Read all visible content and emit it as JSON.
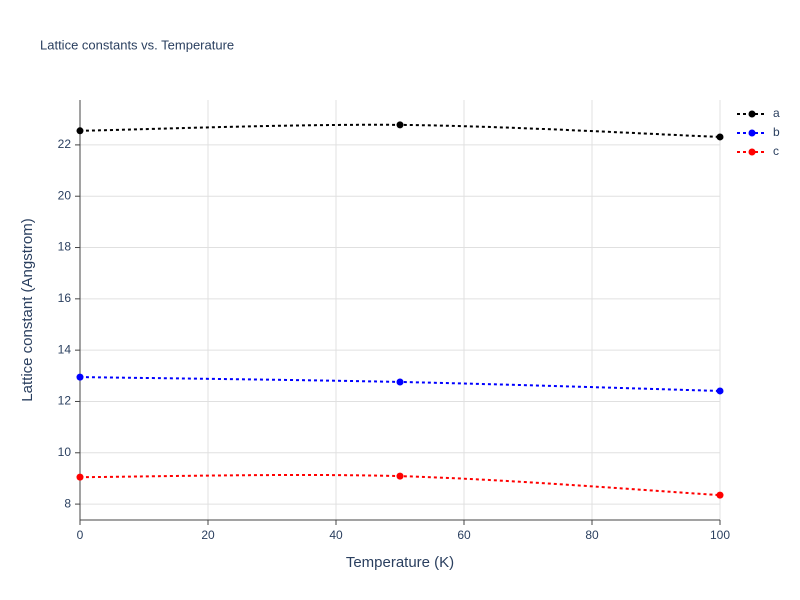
{
  "chart_data": {
    "type": "line",
    "title": "Lattice constants vs. Temperature",
    "x_label": "Temperature (K)",
    "y_label": "Lattice constant (Angstrom)",
    "x": [
      0,
      50,
      100
    ],
    "series": [
      {
        "name": "a",
        "color": "#000000",
        "values": [
          22.55,
          22.78,
          22.31
        ]
      },
      {
        "name": "b",
        "color": "#0000ff",
        "values": [
          12.95,
          12.76,
          12.41
        ]
      },
      {
        "name": "c",
        "color": "#ff0000",
        "values": [
          9.05,
          9.09,
          8.35
        ]
      }
    ],
    "xlim": [
      0,
      100
    ],
    "xticks": [
      0,
      20,
      40,
      60,
      80,
      100
    ],
    "ylim": [
      7.38,
      23.75
    ],
    "yticks": [
      8,
      10,
      12,
      14,
      16,
      18,
      20,
      22
    ],
    "grid": true,
    "line_style": "dotted",
    "smooth": true,
    "legend": "right"
  }
}
